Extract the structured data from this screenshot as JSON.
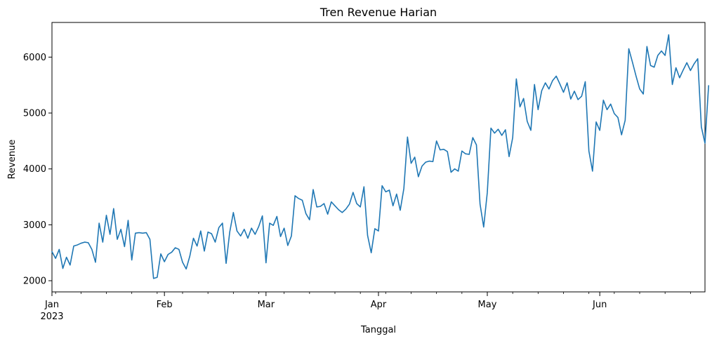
{
  "chart_data": {
    "type": "line",
    "title": "Tren Revenue Harian",
    "xlabel": "Tanggal",
    "ylabel": "Revenue",
    "x_start": "2023-01-01",
    "x_end": "2023-06-30",
    "ylim": [
      1800,
      6620
    ],
    "yticks": [
      2000,
      3000,
      4000,
      5000,
      6000
    ],
    "xticks": [
      {
        "date": "2023-01-01",
        "label": "Jan",
        "sublabel": "2023"
      },
      {
        "date": "2023-02-01",
        "label": "Feb",
        "sublabel": ""
      },
      {
        "date": "2023-03-01",
        "label": "Mar",
        "sublabel": ""
      },
      {
        "date": "2023-04-01",
        "label": "Apr",
        "sublabel": ""
      },
      {
        "date": "2023-05-01",
        "label": "May",
        "sublabel": ""
      },
      {
        "date": "2023-06-01",
        "label": "Jun",
        "sublabel": ""
      }
    ],
    "grid": false,
    "line_color": "#1f77b4",
    "series": [
      {
        "values": [
          2520,
          2400,
          2560,
          2220,
          2420,
          2280,
          2620,
          2640,
          2670,
          2690,
          2680,
          2560,
          2330,
          3030,
          2690,
          3170,
          2830,
          3290,
          2740,
          2920,
          2610,
          3080,
          2370,
          2850,
          2860,
          2850,
          2860,
          2740,
          2040,
          2060,
          2480,
          2340,
          2470,
          2510,
          2590,
          2560,
          2330,
          2210,
          2440,
          2760,
          2620,
          2890,
          2530,
          2870,
          2840,
          2690,
          2950,
          3030,
          2310,
          2870,
          3220,
          2890,
          2800,
          2920,
          2760,
          2940,
          2830,
          2970,
          3160,
          2320,
          3030,
          2990,
          3150,
          2790,
          2940,
          2630,
          2800,
          3520,
          3470,
          3440,
          3200,
          3090,
          3630,
          3320,
          3330,
          3380,
          3190,
          3410,
          3340,
          3270,
          3220,
          3280,
          3370,
          3580,
          3380,
          3320,
          3680,
          2810,
          2500,
          2930,
          2890,
          3700,
          3590,
          3620,
          3340,
          3550,
          3260,
          3650,
          4570,
          4100,
          4210,
          3860,
          4050,
          4120,
          4140,
          4130,
          4500,
          4340,
          4350,
          4310,
          3940,
          4000,
          3960,
          4320,
          4270,
          4260,
          4560,
          4430,
          3370,
          2960,
          3580,
          4730,
          4640,
          4710,
          4600,
          4700,
          4220,
          4560,
          5610,
          5110,
          5260,
          4850,
          4690,
          5510,
          5060,
          5400,
          5540,
          5430,
          5580,
          5660,
          5520,
          5370,
          5540,
          5250,
          5390,
          5240,
          5300,
          5560,
          4320,
          3960,
          4840,
          4690,
          5230,
          5060,
          5160,
          4990,
          4920,
          4610,
          4870,
          6150,
          5910,
          5660,
          5430,
          5340,
          6190,
          5850,
          5820,
          6030,
          6110,
          6030,
          6400,
          5510,
          5810,
          5630,
          5770,
          5900,
          5760,
          5880,
          5970,
          4750,
          4460,
          5490
        ]
      }
    ]
  }
}
